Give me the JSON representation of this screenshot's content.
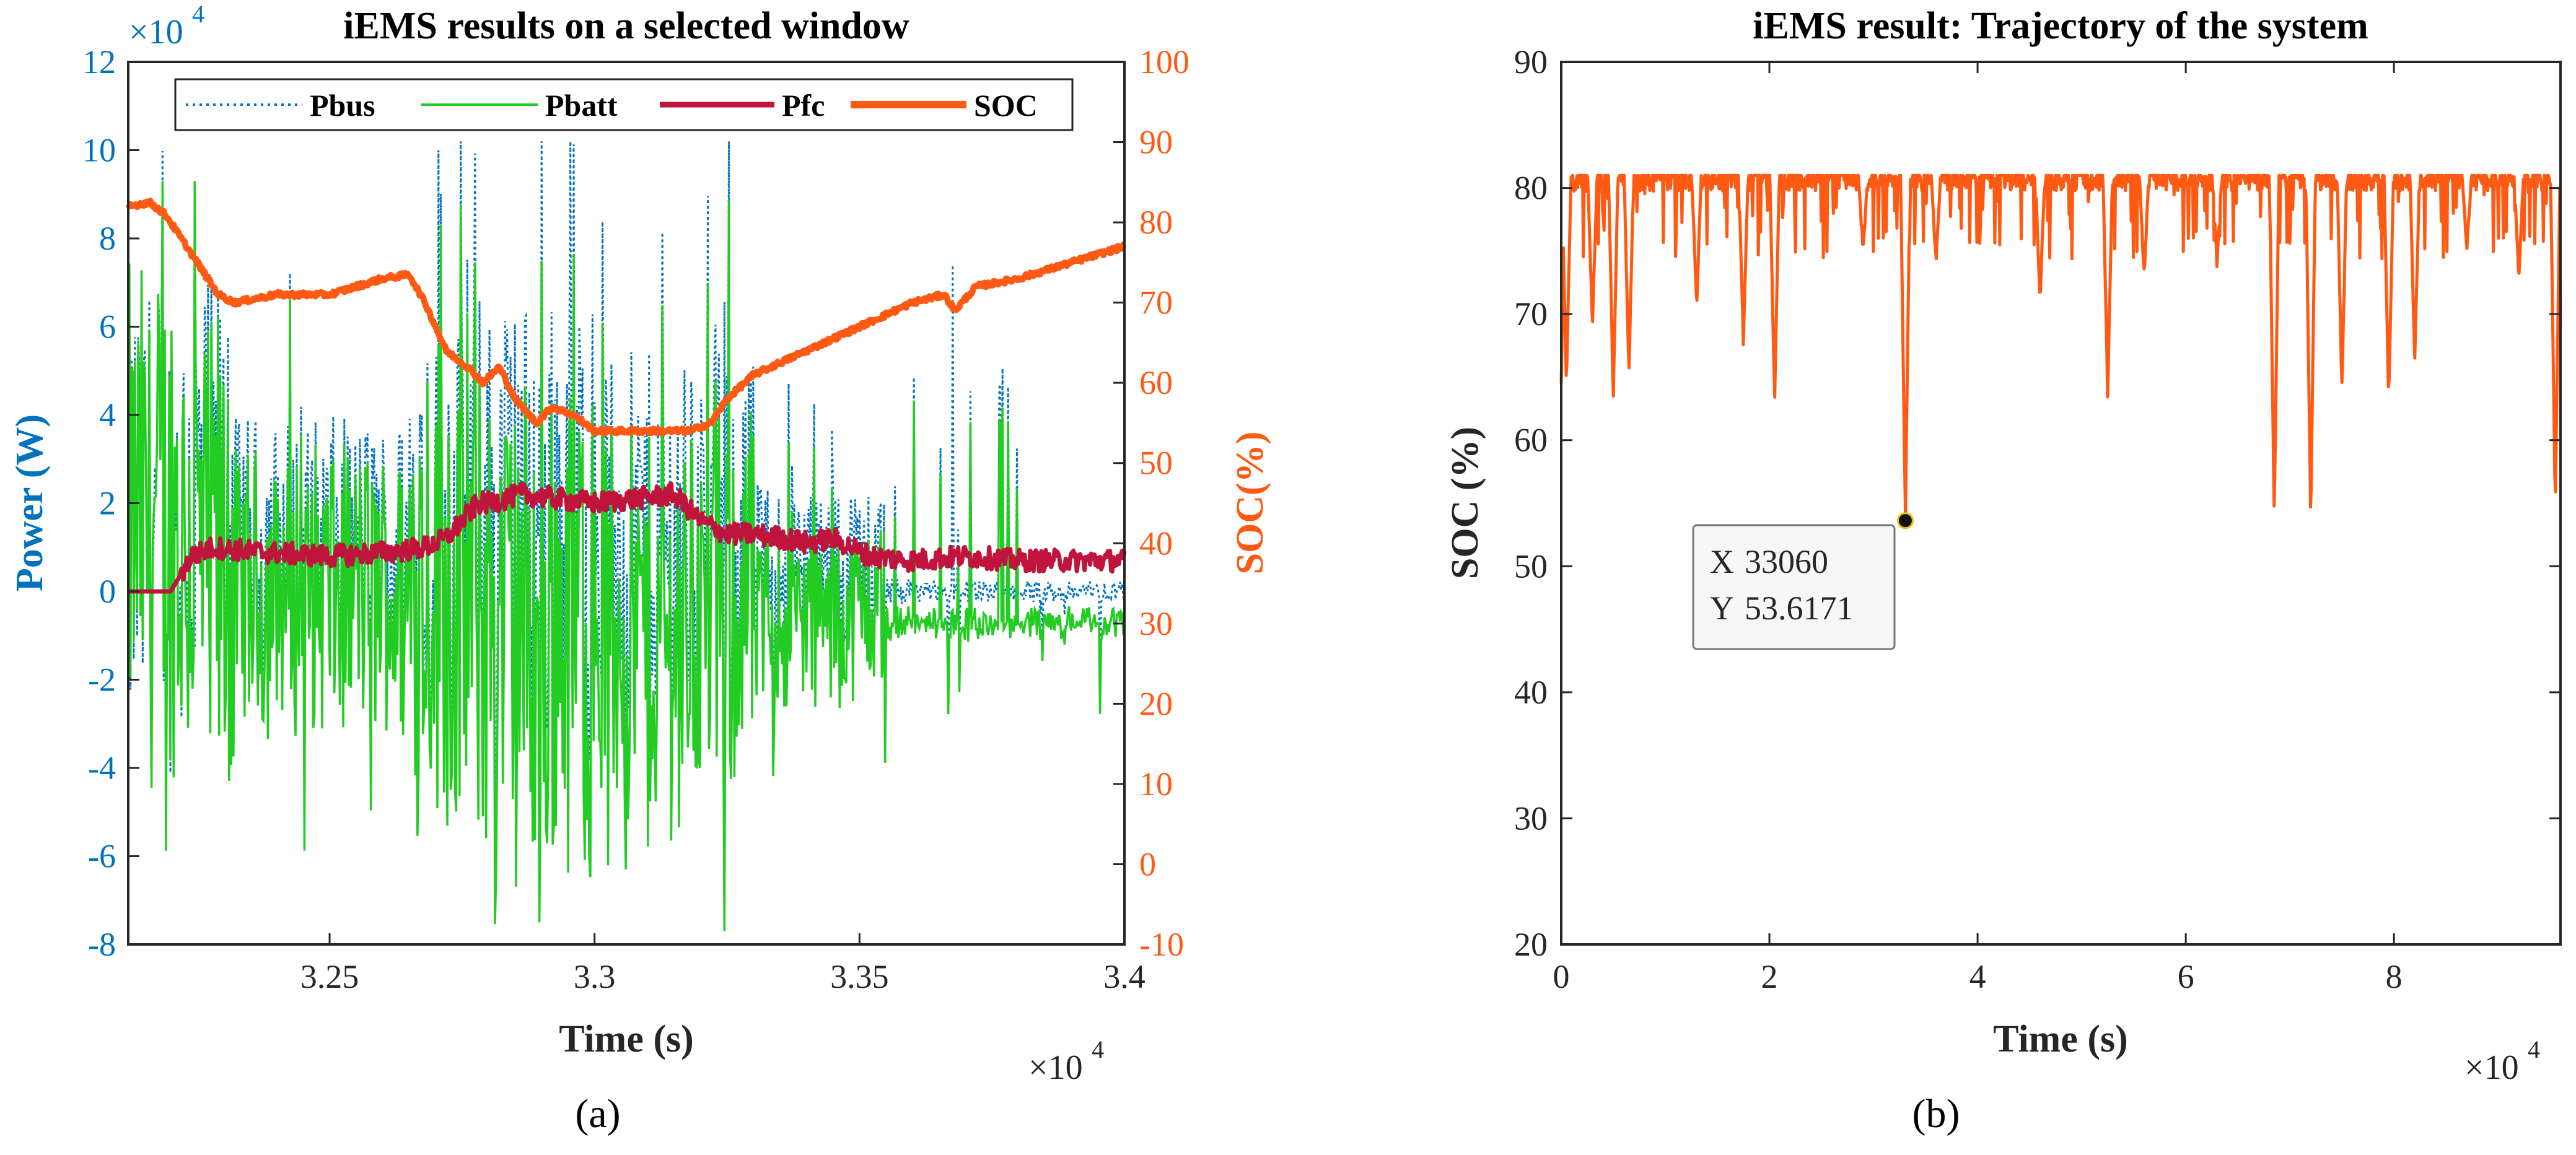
{
  "colors": {
    "pbus": "#0072BD",
    "pbatt": "#22CC22",
    "pfc": "#C0143C",
    "soc": "#FF5A14",
    "axis": "#262626",
    "left_axis_a": "#0072BD",
    "right_axis_a": "#FF5A14"
  },
  "chart_data": [
    {
      "type": "line",
      "title": "iEMS results on a selected window",
      "xlabel": "Time (s)",
      "ylabel": "Power (W)",
      "y2label": "SOC(%)",
      "x_exponent": "×10",
      "x_exponent_power": "4",
      "y_exponent": "×10",
      "y_exponent_power": "4",
      "xlim": [
        3.212,
        3.4
      ],
      "ylim": [
        -8,
        12
      ],
      "y2lim": [
        -10,
        100
      ],
      "xticks": [
        3.25,
        3.3,
        3.35,
        3.4
      ],
      "xtick_labels": [
        "3.25",
        "3.3",
        "3.35",
        "3.4"
      ],
      "yticks": [
        -8,
        -6,
        -4,
        -2,
        0,
        2,
        4,
        6,
        8,
        10,
        12
      ],
      "ytick_labels": [
        "-8",
        "-6",
        "-4",
        "-2",
        "0",
        "2",
        "4",
        "6",
        "8",
        "10",
        "12"
      ],
      "y2ticks": [
        -10,
        0,
        10,
        20,
        30,
        40,
        50,
        60,
        70,
        80,
        90,
        100
      ],
      "y2tick_labels": [
        "-10",
        "0",
        "10",
        "20",
        "30",
        "40",
        "50",
        "60",
        "70",
        "80",
        "90",
        "100"
      ],
      "legend": [
        "Pbus",
        "Pbatt",
        "Pfc",
        "SOC"
      ],
      "legend_location": "top",
      "panel_label": "(a)",
      "series": [
        {
          "name": "SOC",
          "axis": "right",
          "x": [
            3.212,
            3.216,
            3.219,
            3.222,
            3.226,
            3.229,
            3.232,
            3.236,
            3.24,
            3.25,
            3.26,
            3.265,
            3.268,
            3.272,
            3.276,
            3.279,
            3.282,
            3.285,
            3.289,
            3.292,
            3.296,
            3.3,
            3.31,
            3.318,
            3.322,
            3.325,
            3.33,
            3.34,
            3.35,
            3.36,
            3.366,
            3.368,
            3.372,
            3.38,
            3.39,
            3.4
          ],
          "values": [
            82,
            82.5,
            81,
            78,
            74,
            71,
            70,
            70.5,
            71,
            71,
            73,
            73.5,
            70,
            64,
            62,
            60,
            62,
            58,
            55,
            57,
            56,
            54,
            54,
            54,
            55,
            58,
            61,
            64,
            67,
            70,
            71,
            69,
            72,
            73,
            75,
            77
          ]
        },
        {
          "name": "Pfc",
          "axis": "left",
          "x": [
            3.212,
            3.22,
            3.222,
            3.224,
            3.228,
            3.236,
            3.25,
            3.262,
            3.268,
            3.272,
            3.275,
            3.278,
            3.28,
            3.286,
            3.3,
            3.315,
            3.32,
            3.325,
            3.33,
            3.336,
            3.34,
            3.345,
            3.352,
            3.36,
            3.37,
            3.38,
            3.4
          ],
          "values": [
            0,
            0,
            0.4,
            0.8,
            1.0,
            0.9,
            0.8,
            0.9,
            1.0,
            1.2,
            1.6,
            2.0,
            2.0,
            2.2,
            2.0,
            2.2,
            1.6,
            1.3,
            1.3,
            1.2,
            1.1,
            1.2,
            0.8,
            0.7,
            0.8,
            0.7,
            0.7
          ]
        }
      ],
      "power_peaks": {
        "pbus_max": 10.2,
        "pbus_min": -5.3,
        "pbatt_max": 9.3,
        "pbatt_min": -7.7
      }
    },
    {
      "type": "line",
      "title": "iEMS result: Trajectory of the system",
      "xlabel": "Time (s)",
      "ylabel": "SOC (%)",
      "x_exponent": "×10",
      "x_exponent_power": "4",
      "xlim": [
        0,
        9.6
      ],
      "ylim": [
        20,
        90
      ],
      "xticks": [
        0,
        2,
        4,
        6,
        8
      ],
      "xtick_labels": [
        "0",
        "2",
        "4",
        "6",
        "8"
      ],
      "yticks": [
        20,
        30,
        40,
        50,
        60,
        70,
        80,
        90
      ],
      "ytick_labels": [
        "20",
        "30",
        "40",
        "50",
        "60",
        "70",
        "80",
        "90"
      ],
      "panel_label": "(b)",
      "series": [
        {
          "name": "SOC trajectory",
          "baseline": 81,
          "dips": [
            {
              "x": 0.05,
              "y": 64.5
            },
            {
              "x": 0.3,
              "y": 69
            },
            {
              "x": 0.5,
              "y": 63.5
            },
            {
              "x": 0.65,
              "y": 65
            },
            {
              "x": 1.3,
              "y": 70.5
            },
            {
              "x": 1.75,
              "y": 68
            },
            {
              "x": 2.05,
              "y": 63
            },
            {
              "x": 2.9,
              "y": 75
            },
            {
              "x": 3.306,
              "y": 53.6171
            },
            {
              "x": 3.6,
              "y": 74
            },
            {
              "x": 4.6,
              "y": 71
            },
            {
              "x": 5.25,
              "y": 63.5
            },
            {
              "x": 5.6,
              "y": 73
            },
            {
              "x": 6.3,
              "y": 74
            },
            {
              "x": 6.85,
              "y": 54
            },
            {
              "x": 7.2,
              "y": 53.5
            },
            {
              "x": 7.5,
              "y": 64
            },
            {
              "x": 7.95,
              "y": 63
            },
            {
              "x": 8.2,
              "y": 66
            },
            {
              "x": 8.7,
              "y": 75
            },
            {
              "x": 9.2,
              "y": 73
            },
            {
              "x": 9.55,
              "y": 54.5
            }
          ]
        }
      ],
      "datatip": {
        "x_label": "X",
        "x_value": "33060",
        "y_label": "Y",
        "y_value": "53.6171",
        "x": 3.306,
        "y": 53.6171
      }
    }
  ]
}
